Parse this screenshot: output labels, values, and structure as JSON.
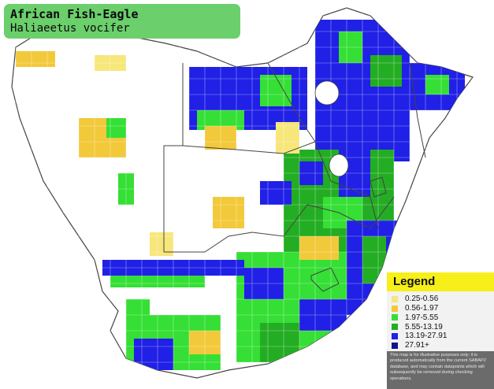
{
  "title": {
    "common_name": "African Fish-Eagle",
    "scientific_name": "Haliaeetus vocifer"
  },
  "legend": {
    "heading": "Legend",
    "items": [
      {
        "label": "0.25-0.56",
        "color": "#f7e67a"
      },
      {
        "label": "0.56-1.97",
        "color": "#f2c93a"
      },
      {
        "label": "1.97-5.55",
        "color": "#35df35"
      },
      {
        "label": "5.55-13.19",
        "color": "#23ad23"
      },
      {
        "label": "13.19-27.91",
        "color": "#2020e6"
      },
      {
        "label": "27.91+",
        "color": "#14148a"
      }
    ],
    "disclaimer": "This map is for illustrative purposes only; it is produced automatically from the current SABAP2 database, and may contain datapoints which will subsequently be removed during checking operations."
  },
  "colors": {
    "title_box": "#6bcf6b",
    "legend_heading": "#f6ef19",
    "borders": "#444444"
  }
}
